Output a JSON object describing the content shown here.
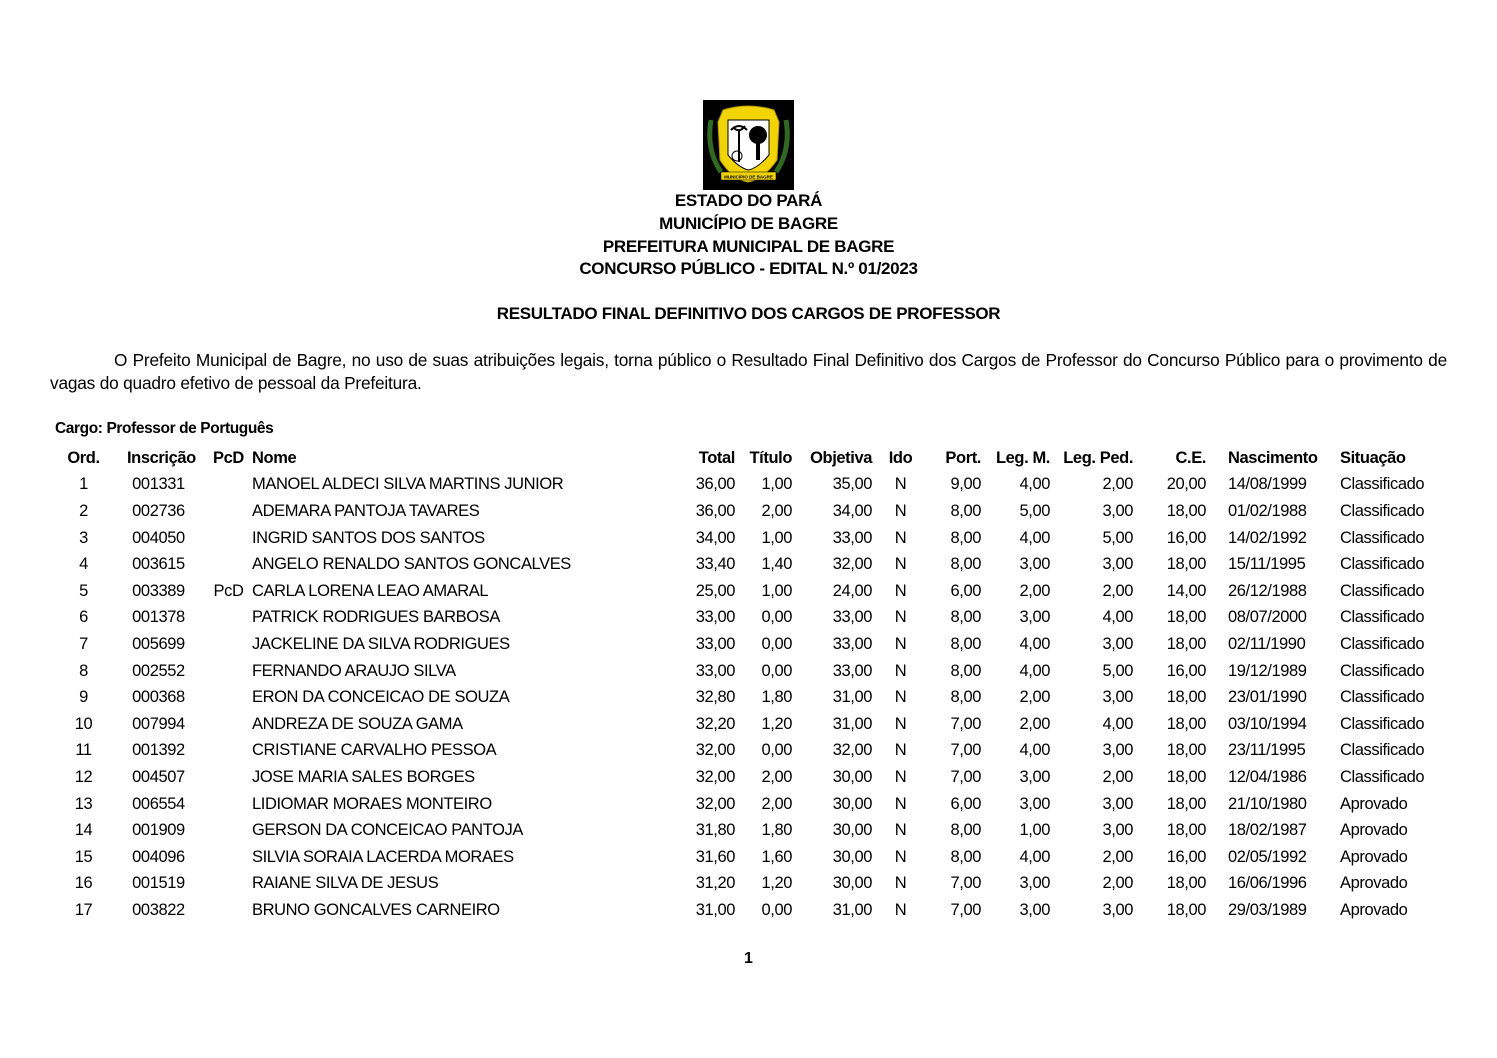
{
  "header": {
    "logo_text": "MUNICÍPIO DE BAGRE",
    "lines": [
      "ESTADO DO PARÁ",
      "MUNICÍPIO DE BAGRE",
      "PREFEITURA MUNICIPAL DE BAGRE",
      "CONCURSO PÚBLICO - EDITAL N.º 01/2023"
    ],
    "subtitle": "RESULTADO FINAL DEFINITIVO DOS CARGOS DE PROFESSOR"
  },
  "intro": "O Prefeito Municipal de Bagre, no uso de suas atribuições legais, torna público o Resultado Final Definitivo dos Cargos de Professor do Concurso Público para o provimento de vagas do quadro efetivo de pessoal da Prefeitura.",
  "cargo": "Cargo: Professor de Português",
  "table": {
    "columns": [
      "Ord.",
      "Inscrição",
      "PcD",
      "Nome",
      "Total",
      "Título",
      "Objetiva",
      "Ido",
      "Port.",
      "Leg. M.",
      "Leg. Ped.",
      "C.E.",
      "Nascimento",
      "Situação"
    ],
    "rows": [
      [
        "1",
        "001331",
        "",
        "MANOEL ALDECI SILVA MARTINS JUNIOR",
        "36,00",
        "1,00",
        "35,00",
        "N",
        "9,00",
        "4,00",
        "2,00",
        "20,00",
        "14/08/1999",
        "Classificado"
      ],
      [
        "2",
        "002736",
        "",
        "ADEMARA PANTOJA TAVARES",
        "36,00",
        "2,00",
        "34,00",
        "N",
        "8,00",
        "5,00",
        "3,00",
        "18,00",
        "01/02/1988",
        "Classificado"
      ],
      [
        "3",
        "004050",
        "",
        "INGRID SANTOS DOS SANTOS",
        "34,00",
        "1,00",
        "33,00",
        "N",
        "8,00",
        "4,00",
        "5,00",
        "16,00",
        "14/02/1992",
        "Classificado"
      ],
      [
        "4",
        "003615",
        "",
        "ANGELO RENALDO SANTOS GONCALVES",
        "33,40",
        "1,40",
        "32,00",
        "N",
        "8,00",
        "3,00",
        "3,00",
        "18,00",
        "15/11/1995",
        "Classificado"
      ],
      [
        "5",
        "003389",
        "PcD",
        "CARLA LORENA LEAO AMARAL",
        "25,00",
        "1,00",
        "24,00",
        "N",
        "6,00",
        "2,00",
        "2,00",
        "14,00",
        "26/12/1988",
        "Classificado"
      ],
      [
        "6",
        "001378",
        "",
        "PATRICK RODRIGUES BARBOSA",
        "33,00",
        "0,00",
        "33,00",
        "N",
        "8,00",
        "3,00",
        "4,00",
        "18,00",
        "08/07/2000",
        "Classificado"
      ],
      [
        "7",
        "005699",
        "",
        "JACKELINE DA SILVA RODRIGUES",
        "33,00",
        "0,00",
        "33,00",
        "N",
        "8,00",
        "4,00",
        "3,00",
        "18,00",
        "02/11/1990",
        "Classificado"
      ],
      [
        "8",
        "002552",
        "",
        "FERNANDO ARAUJO SILVA",
        "33,00",
        "0,00",
        "33,00",
        "N",
        "8,00",
        "4,00",
        "5,00",
        "16,00",
        "19/12/1989",
        "Classificado"
      ],
      [
        "9",
        "000368",
        "",
        "ERON DA CONCEICAO DE SOUZA",
        "32,80",
        "1,80",
        "31,00",
        "N",
        "8,00",
        "2,00",
        "3,00",
        "18,00",
        "23/01/1990",
        "Classificado"
      ],
      [
        "10",
        "007994",
        "",
        "ANDREZA DE SOUZA GAMA",
        "32,20",
        "1,20",
        "31,00",
        "N",
        "7,00",
        "2,00",
        "4,00",
        "18,00",
        "03/10/1994",
        "Classificado"
      ],
      [
        "11",
        "001392",
        "",
        "CRISTIANE CARVALHO PESSOA",
        "32,00",
        "0,00",
        "32,00",
        "N",
        "7,00",
        "4,00",
        "3,00",
        "18,00",
        "23/11/1995",
        "Classificado"
      ],
      [
        "12",
        "004507",
        "",
        "JOSE MARIA SALES BORGES",
        "32,00",
        "2,00",
        "30,00",
        "N",
        "7,00",
        "3,00",
        "2,00",
        "18,00",
        "12/04/1986",
        "Classificado"
      ],
      [
        "13",
        "006554",
        "",
        "LIDIOMAR MORAES MONTEIRO",
        "32,00",
        "2,00",
        "30,00",
        "N",
        "6,00",
        "3,00",
        "3,00",
        "18,00",
        "21/10/1980",
        "Aprovado"
      ],
      [
        "14",
        "001909",
        "",
        "GERSON DA CONCEICAO PANTOJA",
        "31,80",
        "1,80",
        "30,00",
        "N",
        "8,00",
        "1,00",
        "3,00",
        "18,00",
        "18/02/1987",
        "Aprovado"
      ],
      [
        "15",
        "004096",
        "",
        "SILVIA SORAIA LACERDA MORAES",
        "31,60",
        "1,60",
        "30,00",
        "N",
        "8,00",
        "4,00",
        "2,00",
        "16,00",
        "02/05/1992",
        "Aprovado"
      ],
      [
        "16",
        "001519",
        "",
        "RAIANE SILVA DE JESUS",
        "31,20",
        "1,20",
        "30,00",
        "N",
        "7,00",
        "3,00",
        "2,00",
        "18,00",
        "16/06/1996",
        "Aprovado"
      ],
      [
        "17",
        "003822",
        "",
        "BRUNO GONCALVES CARNEIRO",
        "31,00",
        "0,00",
        "31,00",
        "N",
        "7,00",
        "3,00",
        "3,00",
        "18,00",
        "29/03/1989",
        "Aprovado"
      ]
    ]
  },
  "page_number": "1",
  "colors": {
    "logo_yellow": "#f2d500",
    "logo_green": "#2e6b1e"
  }
}
